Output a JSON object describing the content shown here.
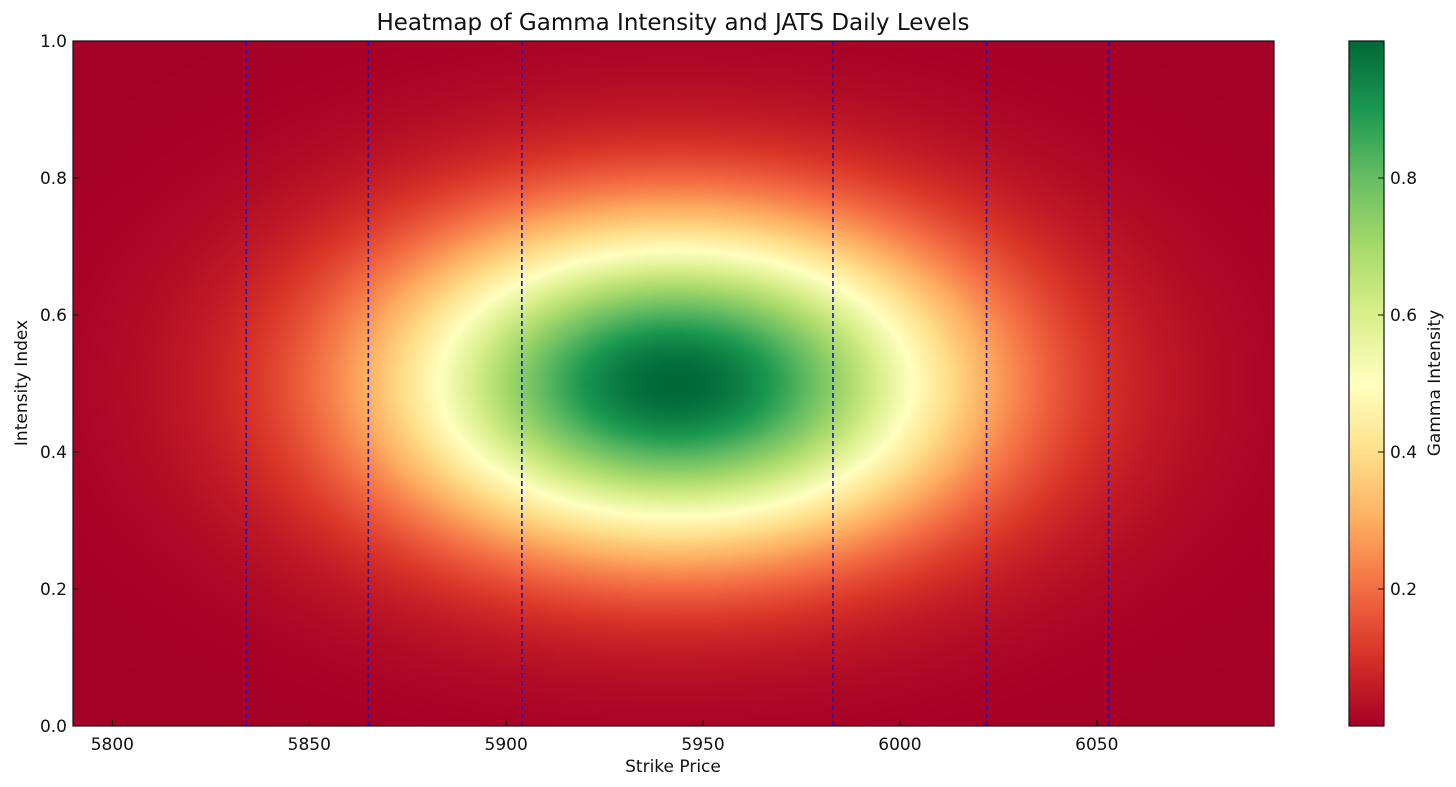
{
  "chart_data": {
    "type": "heatmap",
    "title": "Heatmap of Gamma Intensity and JATS Daily Levels",
    "xlabel": "Strike Price",
    "ylabel": "Intensity Index",
    "xlim": [
      5790,
      6095
    ],
    "ylim": [
      0.0,
      1.0
    ],
    "x_ticks": [
      5800,
      5850,
      5900,
      5950,
      6000,
      6050
    ],
    "y_ticks": [
      0.0,
      0.2,
      0.4,
      0.6,
      0.8,
      1.0
    ],
    "x_tick_labels": [
      "5800",
      "5850",
      "5900",
      "5950",
      "6000",
      "6050"
    ],
    "y_tick_labels": [
      "0.0",
      "0.2",
      "0.4",
      "0.6",
      "0.8",
      "1.0"
    ],
    "colormap": "RdYlGn",
    "gaussian": {
      "center_x": 5943,
      "center_y": 0.5,
      "sigma_x": 51,
      "sigma_y": 0.165,
      "peak": 1.0
    },
    "jats_levels": [
      5834,
      5865,
      5904,
      5983,
      6022,
      6053
    ],
    "level_line_color": "#1515d0",
    "colorbar": {
      "label": "Gamma Intensity",
      "range": [
        0.0,
        1.0
      ],
      "ticks": [
        0.2,
        0.4,
        0.6,
        0.8
      ],
      "tick_labels": [
        "0.2",
        "0.4",
        "0.6",
        "0.8"
      ]
    },
    "grid": false
  }
}
